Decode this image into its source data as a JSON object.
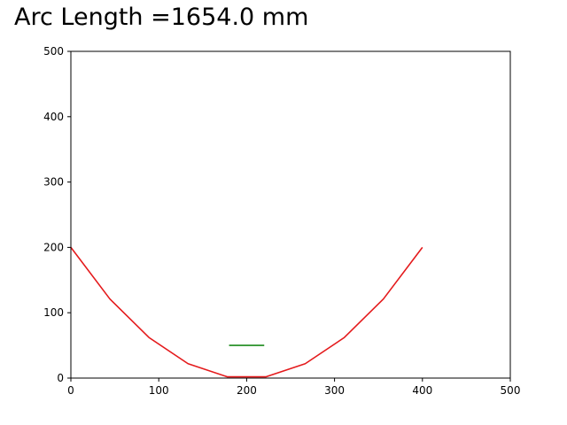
{
  "title": "Arc Length =1654.0 mm",
  "chart_data": {
    "type": "line",
    "title": "Arc Length =1654.0 mm",
    "xlabel": "",
    "ylabel": "",
    "xlim": [
      0,
      500
    ],
    "ylim": [
      0,
      500
    ],
    "x_ticks": [
      0,
      100,
      200,
      300,
      400,
      500
    ],
    "y_ticks": [
      0,
      100,
      200,
      300,
      400,
      500
    ],
    "grid": false,
    "legend": "none",
    "series": [
      {
        "color": "#e41a1c",
        "x": [
          0,
          44.4,
          88.9,
          133.3,
          177.8,
          222.2,
          266.7,
          311.1,
          355.6,
          400
        ],
        "y": [
          200,
          121,
          62,
          22,
          2,
          2,
          22,
          62,
          121,
          200
        ]
      },
      {
        "color": "#1a8a1a",
        "x": [
          180,
          220
        ],
        "y": [
          50,
          50
        ]
      }
    ]
  }
}
